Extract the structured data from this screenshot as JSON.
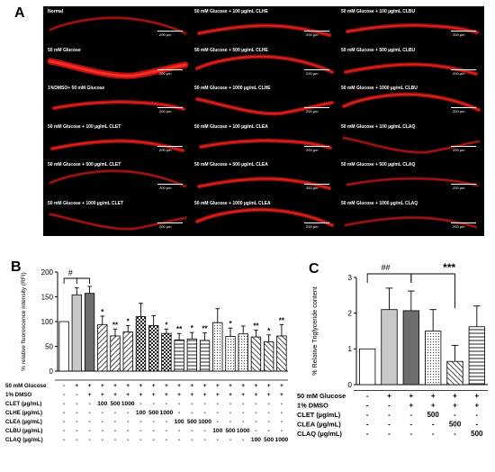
{
  "panel_a": {
    "letter": "A",
    "scale_label": "200 µm",
    "tiles": [
      {
        "label": "Normal",
        "worm": "faint"
      },
      {
        "label": "50 mM Glucose + 100 µg/mL CLHE",
        "worm": "medium"
      },
      {
        "label": "50 mM Glucose + 100 µg/mL CLBU",
        "worm": "medium"
      },
      {
        "label": "50 mM Glucose",
        "worm": "bright"
      },
      {
        "label": "50 mM Glucose + 500 µg/mL CLHE",
        "worm": "medium"
      },
      {
        "label": "50 mM Glucose + 500 µg/mL CLBU",
        "worm": "medium"
      },
      {
        "label": "1%DMSO+ 50 mM Glucose",
        "worm": "medium"
      },
      {
        "label": "50 mM Glucose + 1000 µg/mL CLHE",
        "worm": "medium"
      },
      {
        "label": "50 mM Glucose + 1000 µg/mL CLBU",
        "worm": "medium"
      },
      {
        "label": "50 mM Glucose + 100 µg/mL CLET",
        "worm": "medium"
      },
      {
        "label": "50 mM Glucose + 100 µg/mL CLEA",
        "worm": "medium"
      },
      {
        "label": "50 mM Glucose + 100 µg/mL CLAQ",
        "worm": "faint"
      },
      {
        "label": "50 mM Glucose + 500 µg/mL CLET",
        "worm": "faint"
      },
      {
        "label": "50 mM Glucose + 500 µg/mL CLEA",
        "worm": "medium"
      },
      {
        "label": "50 mM Glucose + 500 µg/mL CLAQ",
        "worm": "faint"
      },
      {
        "label": "50 mM Glucose + 1000 µg/mL CLET",
        "worm": "faint"
      },
      {
        "label": "50 mM Glucose + 1000 µg/mL CLEA",
        "worm": "medium"
      },
      {
        "label": "50 mM Glucose + 1000 µg/mL CLAQ",
        "worm": "faint"
      }
    ]
  },
  "chart_data": [
    {
      "panel": "B",
      "type": "bar",
      "ylabel": "% relative fluorescence intensity (RFI)",
      "ylim": [
        0,
        200
      ],
      "yticks": [
        "0",
        "50",
        "100",
        "150",
        "200"
      ],
      "values": [
        100,
        154,
        157,
        94,
        71,
        79,
        110,
        92,
        76,
        63,
        65,
        62,
        98,
        70,
        75,
        69,
        59,
        71
      ],
      "errors": [
        0,
        14,
        14,
        17,
        14,
        13,
        27,
        20,
        9,
        13,
        13,
        15,
        28,
        17,
        16,
        14,
        14,
        23
      ],
      "patterns": [
        "white",
        "light",
        "dark",
        "diag",
        "diag",
        "diag",
        "check",
        "check",
        "check",
        "hstripe",
        "hstripe",
        "hstripe",
        "dots",
        "dots",
        "dots",
        "bdiag",
        "bdiag",
        "bdiag"
      ],
      "significance": [
        "",
        "",
        "",
        "*",
        "**",
        "*",
        "",
        "",
        "*",
        "**",
        "*",
        "**",
        "",
        "*",
        "",
        "**",
        "*",
        "**"
      ],
      "top_marker": "#",
      "row_labels": [
        "50 mM Glucose",
        "1% DMSO",
        "CLET (µg/mL)",
        "CLHE (µg/mL)",
        "CLEA (µg/mL)",
        "CLBU (µg/mL)",
        "CLAQ (µg/mL)"
      ],
      "rows": [
        [
          "-",
          "+",
          "+",
          "+",
          "+",
          "+",
          "+",
          "+",
          "+",
          "+",
          "+",
          "+",
          "+",
          "+",
          "+",
          "+",
          "+",
          "+"
        ],
        [
          "-",
          "-",
          "+",
          "+",
          "+",
          "+",
          "+",
          "+",
          "+",
          "+",
          "+",
          "+",
          "+",
          "+",
          "+",
          "+",
          "+",
          "+"
        ],
        [
          "-",
          "-",
          "-",
          "100",
          "500",
          "1000",
          "-",
          "-",
          "-",
          "-",
          "-",
          "-",
          "-",
          "-",
          "-",
          "-",
          "-",
          "-"
        ],
        [
          "-",
          "-",
          "-",
          "-",
          "-",
          "-",
          "100",
          "500",
          "1000",
          "-",
          "-",
          "-",
          "-",
          "-",
          "-",
          "-",
          "-",
          "-"
        ],
        [
          "-",
          "-",
          "-",
          "-",
          "-",
          "-",
          "-",
          "-",
          "-",
          "100",
          "500",
          "1000",
          "-",
          "-",
          "-",
          "-",
          "-",
          "-"
        ],
        [
          "-",
          "-",
          "-",
          "-",
          "-",
          "-",
          "-",
          "-",
          "-",
          "-",
          "-",
          "-",
          "100",
          "500",
          "1000",
          "-",
          "-",
          "-"
        ],
        [
          "-",
          "-",
          "-",
          "-",
          "-",
          "-",
          "-",
          "-",
          "-",
          "-",
          "-",
          "-",
          "-",
          "-",
          "-",
          "100",
          "500",
          "1000"
        ]
      ]
    },
    {
      "panel": "C",
      "type": "bar",
      "ylabel": "% Relative Triglyceride content",
      "ylim": [
        0,
        3
      ],
      "yticks": [
        "0",
        "1",
        "2",
        "3"
      ],
      "values": [
        1.0,
        2.1,
        2.07,
        1.5,
        0.65,
        1.62
      ],
      "errors": [
        0,
        0.6,
        0.55,
        0.6,
        0.45,
        0.58
      ],
      "patterns": [
        "white",
        "light",
        "dark",
        "dots",
        "bdiag",
        "hstripe"
      ],
      "markers": [
        "##",
        "***"
      ],
      "row_labels": [
        "50 mM Glucose",
        "1% DMSO",
        "CLET (µg/mL)",
        "CLEA (µg/mL)",
        "CLAQ (µg/mL)"
      ],
      "rows": [
        [
          "-",
          "+",
          "+",
          "+",
          "+",
          "+"
        ],
        [
          "-",
          "-",
          "+",
          "+",
          "+",
          "+"
        ],
        [
          "-",
          "-",
          "-",
          "500",
          "-",
          "-"
        ],
        [
          "-",
          "-",
          "-",
          "-",
          "500",
          "-"
        ],
        [
          "-",
          "-",
          "-",
          "-",
          "-",
          "500"
        ]
      ]
    }
  ]
}
